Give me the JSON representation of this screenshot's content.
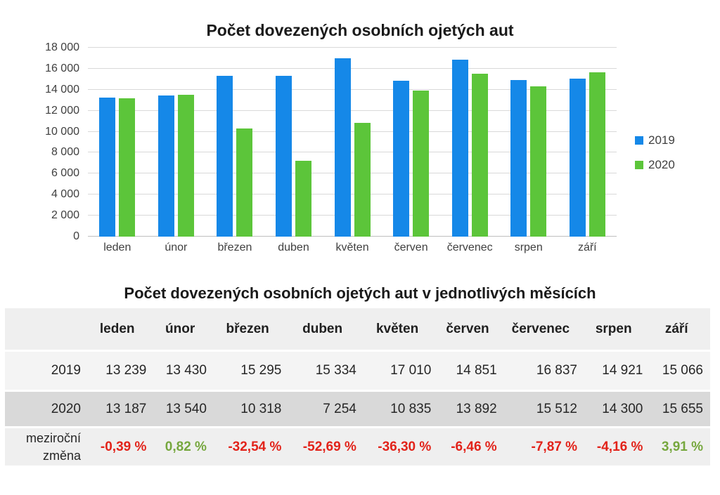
{
  "chart_data": {
    "type": "bar",
    "title": "Počet dovezených osobních ojetých aut",
    "categories": [
      "leden",
      "únor",
      "březen",
      "duben",
      "květen",
      "červen",
      "červenec",
      "srpen",
      "září"
    ],
    "series": [
      {
        "name": "2019",
        "color": "#1588e8",
        "values": [
          13239,
          13430,
          15295,
          15334,
          17010,
          14851,
          16837,
          14921,
          15066
        ]
      },
      {
        "name": "2020",
        "color": "#5cc53a",
        "values": [
          13187,
          13540,
          10318,
          7254,
          10835,
          13892,
          15512,
          14300,
          15655
        ]
      }
    ],
    "ylim": [
      0,
      18000
    ],
    "ytick_step": 2000,
    "y_tick_labels": [
      "0",
      "2 000",
      "4 000",
      "6 000",
      "8 000",
      "10 000",
      "12 000",
      "14 000",
      "16 000",
      "18 000"
    ],
    "grid": true,
    "legend_position": "right",
    "gridline_color": "#d9d9d9",
    "axis_text_color": "#3f3f3f"
  },
  "table": {
    "title": "Počet dovezených osobních ojetých aut v jednotlivých měsících",
    "columns": [
      "leden",
      "únor",
      "březen",
      "duben",
      "květen",
      "červen",
      "červenec",
      "srpen",
      "září"
    ],
    "rows": [
      {
        "label": "2019",
        "type": "2019",
        "values": [
          "13 239",
          "13 430",
          "15 295",
          "15 334",
          "17 010",
          "14 851",
          "16 837",
          "14 921",
          "15 066"
        ]
      },
      {
        "label": "2020",
        "type": "2020",
        "values": [
          "13 187",
          "13 540",
          "10 318",
          "7 254",
          "10 835",
          "13 892",
          "15 512",
          "14 300",
          "15 655"
        ]
      },
      {
        "label": "meziroční změna",
        "type": "change",
        "values": [
          "-0,39 %",
          "0,82 %",
          "-32,54 %",
          "-52,69 %",
          "-36,30 %",
          "-6,46 %",
          "-7,87 %",
          "-4,16 %",
          "3,91 %"
        ]
      }
    ],
    "positive_color": "#76a73e",
    "negative_color": "#e2231a"
  }
}
